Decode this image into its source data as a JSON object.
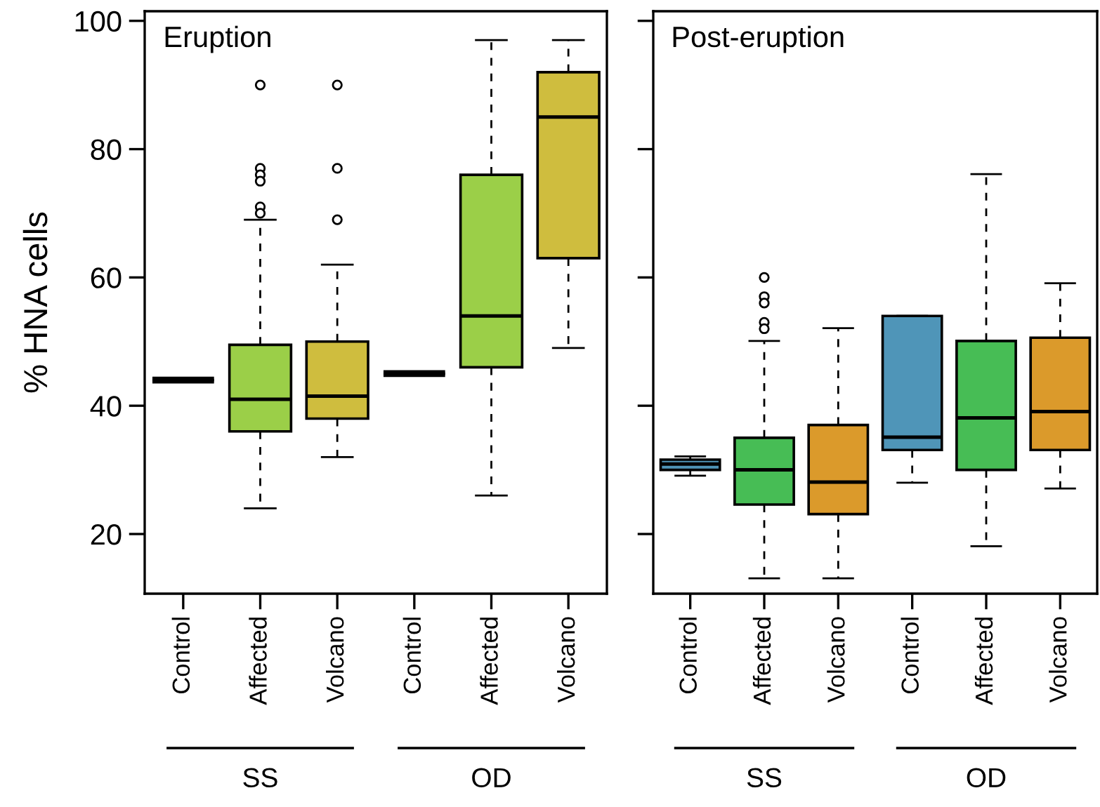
{
  "chart_data": [
    {
      "type": "box",
      "title": "Eruption",
      "ylabel": "% HNA cells",
      "categories": [
        "Control",
        "Affected",
        "Volcano",
        "Control",
        "Affected",
        "Volcano"
      ],
      "colors": [
        null,
        "#9bcf48",
        "#cfbd3e",
        null,
        "#9bcf48",
        "#cfbd3e"
      ],
      "boxes": [
        {
          "low": 44,
          "q1": 44,
          "median": 44,
          "q3": 44,
          "high": 44
        },
        {
          "low": 24,
          "q1": 36,
          "median": 41,
          "q3": 49.5,
          "high": 69,
          "outliers": [
            90,
            77,
            76,
            75,
            71,
            70
          ]
        },
        {
          "low": 32,
          "q1": 38,
          "median": 41.5,
          "q3": 50,
          "high": 62,
          "outliers": [
            90,
            77,
            69
          ]
        },
        {
          "low": 45,
          "q1": 45,
          "median": 45,
          "q3": 45,
          "high": 45
        },
        {
          "low": 26,
          "q1": 46,
          "median": 54,
          "q3": 76,
          "high": 97
        },
        {
          "low": 49,
          "q1": 63,
          "median": 85,
          "q3": 92,
          "high": 97
        }
      ],
      "ylim": [
        10.7,
        101.5
      ],
      "yticks": [
        20,
        40,
        60,
        80,
        100
      ],
      "annotations": [
        "SS",
        "OD"
      ]
    },
    {
      "type": "box",
      "title": "Post-eruption",
      "categories": [
        "Control",
        "Affected",
        "Volcano",
        "Control",
        "Affected",
        "Volcano"
      ],
      "colors": [
        "#4f95b8",
        "#47bd55",
        "#db9a2b",
        "#4f95b8",
        "#47bd55",
        "#db9a2b"
      ],
      "boxes": [
        {
          "low": 29.1,
          "q1": 30,
          "median": 30.9,
          "q3": 31.6,
          "high": 32.1
        },
        {
          "low": 13.1,
          "q1": 24.6,
          "median": 30,
          "q3": 35,
          "high": 50.1,
          "outliers": [
            60,
            57,
            56,
            53,
            52
          ]
        },
        {
          "low": 13.1,
          "q1": 23.1,
          "median": 28.1,
          "q3": 37,
          "high": 52.1
        },
        {
          "low": 28,
          "q1": 33.1,
          "median": 35.1,
          "q3": 54,
          "high": 54
        },
        {
          "low": 18.1,
          "q1": 30,
          "median": 38.1,
          "q3": 50.1,
          "high": 76.1
        },
        {
          "low": 27.1,
          "q1": 33.1,
          "median": 39.1,
          "q3": 50.6,
          "high": 59.1
        }
      ],
      "ylim": [
        10.7,
        101.5
      ],
      "yticks": [
        20,
        40,
        60,
        80,
        100
      ],
      "tick_labels": "x",
      "annotations": [
        "SS",
        "OD"
      ]
    }
  ]
}
